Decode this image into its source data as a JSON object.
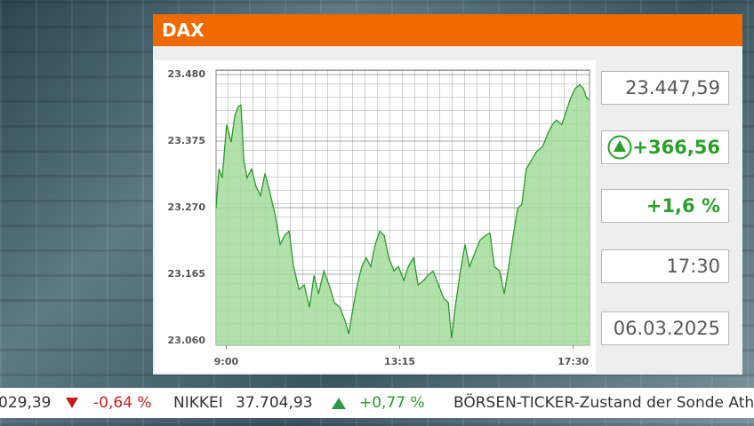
{
  "header": {
    "title": "DAX"
  },
  "quote": {
    "price": "23.447,59",
    "change": "+366,56",
    "change_pct": "+1,6 %",
    "time": "17:30",
    "date": "06.03.2025"
  },
  "ticker": {
    "items": [
      "029,39",
      "-0,64 %",
      "NIKKEI",
      "37.704,93",
      "+0,77 %",
      "BÖRSEN-TICKER-Zustand der Sonde Athe"
    ]
  },
  "chart_data": {
    "type": "area",
    "color": "#2a9a2a",
    "fill": "#a6dc9e",
    "grid": true,
    "xlim": [
      8.75,
      17.9
    ],
    "ylim": [
      23053,
      23487
    ],
    "xticks": [
      {
        "value": 9,
        "label": "9:00"
      },
      {
        "value": 13.25,
        "label": "13:15"
      },
      {
        "value": 17.5,
        "label": "17:30"
      }
    ],
    "yticks": [
      {
        "value": 23060,
        "label": "23.060"
      },
      {
        "value": 23165,
        "label": "23.165"
      },
      {
        "value": 23270,
        "label": "23.270"
      },
      {
        "value": 23375,
        "label": "23.375"
      },
      {
        "value": 23480,
        "label": "23.480"
      }
    ],
    "x": [
      8.75,
      8.82,
      8.9,
      9.01,
      9.12,
      9.21,
      9.29,
      9.36,
      9.43,
      9.51,
      9.62,
      9.73,
      9.84,
      9.95,
      10.06,
      10.19,
      10.32,
      10.43,
      10.54,
      10.65,
      10.78,
      10.91,
      11.04,
      11.15,
      11.26,
      11.39,
      11.52,
      11.65,
      11.78,
      11.91,
      12.0,
      12.11,
      12.21,
      12.32,
      12.43,
      12.54,
      12.65,
      12.76,
      12.87,
      12.98,
      13.11,
      13.22,
      13.35,
      13.46,
      13.59,
      13.7,
      13.83,
      13.94,
      14.07,
      14.2,
      14.33,
      14.44,
      14.52,
      14.61,
      14.72,
      14.85,
      14.96,
      15.09,
      15.22,
      15.35,
      15.46,
      15.57,
      15.7,
      15.81,
      15.92,
      16.03,
      16.14,
      16.24,
      16.35,
      16.48,
      16.61,
      16.75,
      16.88,
      16.99,
      17.09,
      17.22,
      17.33,
      17.44,
      17.55,
      17.66,
      17.75,
      17.83,
      17.9
    ],
    "values": [
      23269,
      23331,
      23317,
      23401,
      23373,
      23415,
      23429,
      23432,
      23345,
      23317,
      23331,
      23303,
      23289,
      23324,
      23296,
      23261,
      23212,
      23226,
      23233,
      23177,
      23141,
      23148,
      23113,
      23163,
      23134,
      23170,
      23148,
      23120,
      23113,
      23092,
      23071,
      23113,
      23148,
      23177,
      23191,
      23177,
      23212,
      23233,
      23226,
      23191,
      23170,
      23177,
      23155,
      23177,
      23191,
      23148,
      23155,
      23163,
      23170,
      23148,
      23127,
      23120,
      23064,
      23113,
      23163,
      23212,
      23177,
      23198,
      23219,
      23226,
      23230,
      23177,
      23170,
      23134,
      23177,
      23226,
      23269,
      23275,
      23331,
      23345,
      23359,
      23366,
      23387,
      23401,
      23408,
      23401,
      23422,
      23443,
      23458,
      23464,
      23458,
      23443,
      23440
    ]
  }
}
